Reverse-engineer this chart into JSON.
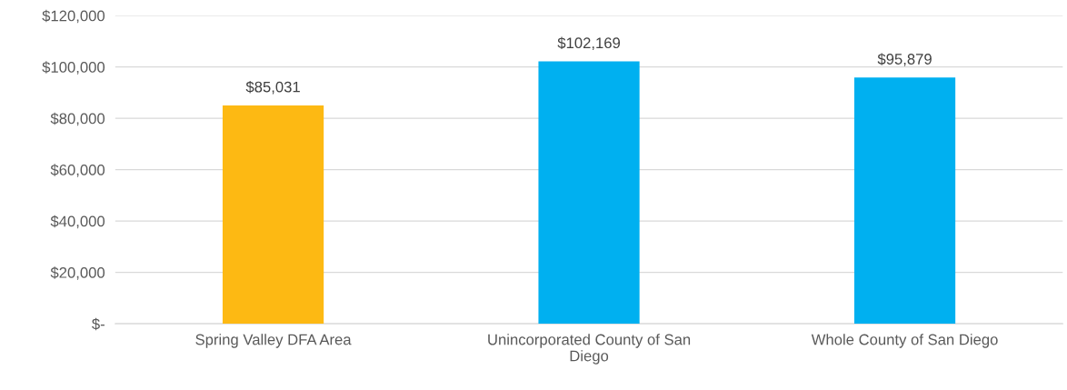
{
  "chart_data": {
    "type": "bar",
    "categories": [
      "Spring Valley DFA Area",
      "Unincorporated County of San\nDiego",
      "Whole County of San Diego"
    ],
    "values": [
      85031,
      102169,
      95879
    ],
    "colors": [
      "#fdb913",
      "#00b0f0",
      "#00b0f0"
    ],
    "value_labels": [
      "$85,031",
      "$102,169",
      "$95,879"
    ],
    "ylim": [
      0,
      120000
    ],
    "yticks": [
      {
        "value": 0,
        "label": "$-"
      },
      {
        "value": 20000,
        "label": "$20,000"
      },
      {
        "value": 40000,
        "label": "$40,000"
      },
      {
        "value": 60000,
        "label": "$60,000"
      },
      {
        "value": 80000,
        "label": "$80,000"
      },
      {
        "value": 100000,
        "label": "$100,000"
      },
      {
        "value": 120000,
        "label": "$120,000"
      }
    ],
    "grid": "y",
    "legend": false
  }
}
